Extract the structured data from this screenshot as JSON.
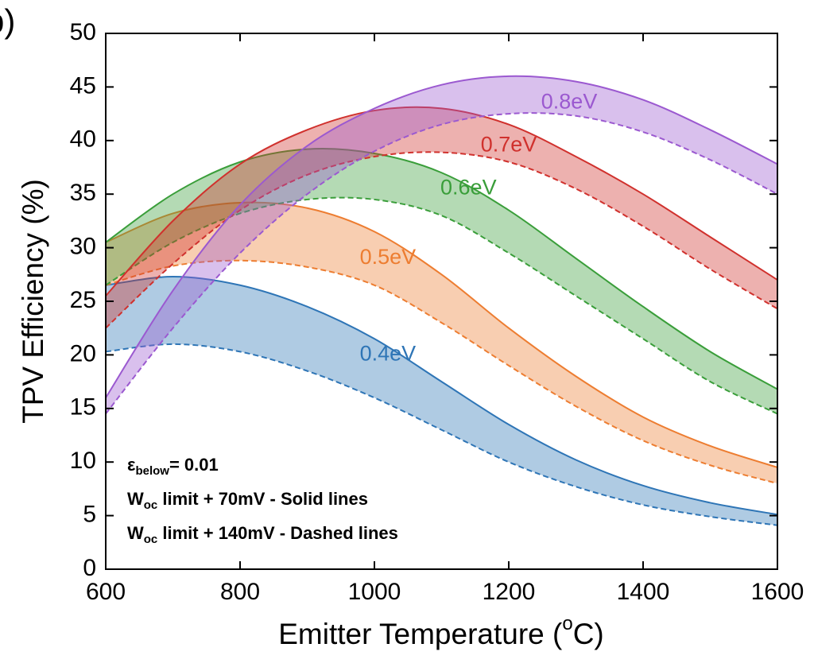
{
  "chart_data": {
    "type": "band",
    "panel_label": "b)",
    "x_label": [
      "Emitter Temperature (",
      "o",
      "C)"
    ],
    "y_label": "TPV Efficiency (%)",
    "x": [
      600,
      700,
      800,
      900,
      1000,
      1100,
      1200,
      1300,
      1400,
      1500,
      1600
    ],
    "series": [
      {
        "name": "0.4eV",
        "color": "#2e75b6",
        "upper": [
          26.5,
          27.3,
          26.5,
          24.5,
          21.5,
          17.5,
          13.5,
          10.2,
          7.8,
          6.2,
          5.1
        ],
        "lower": [
          20.3,
          21.0,
          20.3,
          18.5,
          16.0,
          13.0,
          10.0,
          7.7,
          6.0,
          4.9,
          4.1
        ]
      },
      {
        "name": "0.5eV",
        "color": "#ed7d31",
        "upper": [
          30.5,
          33.2,
          34.2,
          33.7,
          31.5,
          27.5,
          22.5,
          18.0,
          14.2,
          11.5,
          9.5
        ],
        "lower": [
          26.5,
          28.3,
          28.8,
          28.2,
          26.5,
          23.0,
          19.0,
          15.2,
          12.0,
          9.7,
          8.0
        ]
      },
      {
        "name": "0.6eV",
        "color": "#3a9e3a",
        "upper": [
          30.5,
          35.0,
          38.0,
          39.2,
          38.8,
          37.0,
          33.5,
          29.0,
          24.5,
          20.3,
          16.8
        ],
        "lower": [
          26.5,
          30.5,
          33.2,
          34.5,
          34.5,
          33.0,
          29.5,
          25.5,
          21.5,
          17.5,
          14.5
        ]
      },
      {
        "name": "0.7eV",
        "color": "#d0312d",
        "upper": [
          25.5,
          32.5,
          37.8,
          41.0,
          42.8,
          43.0,
          41.5,
          38.5,
          35.0,
          31.0,
          27.0
        ],
        "lower": [
          22.5,
          28.5,
          33.5,
          36.8,
          38.5,
          38.9,
          38.0,
          35.5,
          32.0,
          28.0,
          24.3
        ]
      },
      {
        "name": "0.8eV",
        "color": "#9b59d0",
        "upper": [
          16.0,
          26.0,
          34.0,
          39.5,
          43.0,
          45.2,
          46.0,
          45.5,
          43.8,
          41.0,
          37.8
        ],
        "lower": [
          14.5,
          22.5,
          29.5,
          35.0,
          39.0,
          41.5,
          42.5,
          42.3,
          40.8,
          38.2,
          35.0
        ]
      }
    ],
    "annotations": [
      [
        "ε",
        "below",
        "= 0.01"
      ],
      [
        "W",
        "oc",
        " limit + 70mV - Solid lines"
      ],
      [
        "W",
        "oc",
        " limit + 140mV - Dashed lines"
      ]
    ],
    "xlim": [
      600,
      1600
    ],
    "xticks": [
      600,
      800,
      1000,
      1200,
      1400,
      1600
    ],
    "ylim": [
      0,
      50
    ],
    "yticks": [
      0,
      5,
      10,
      15,
      20,
      25,
      30,
      35,
      40,
      45,
      50
    ]
  }
}
